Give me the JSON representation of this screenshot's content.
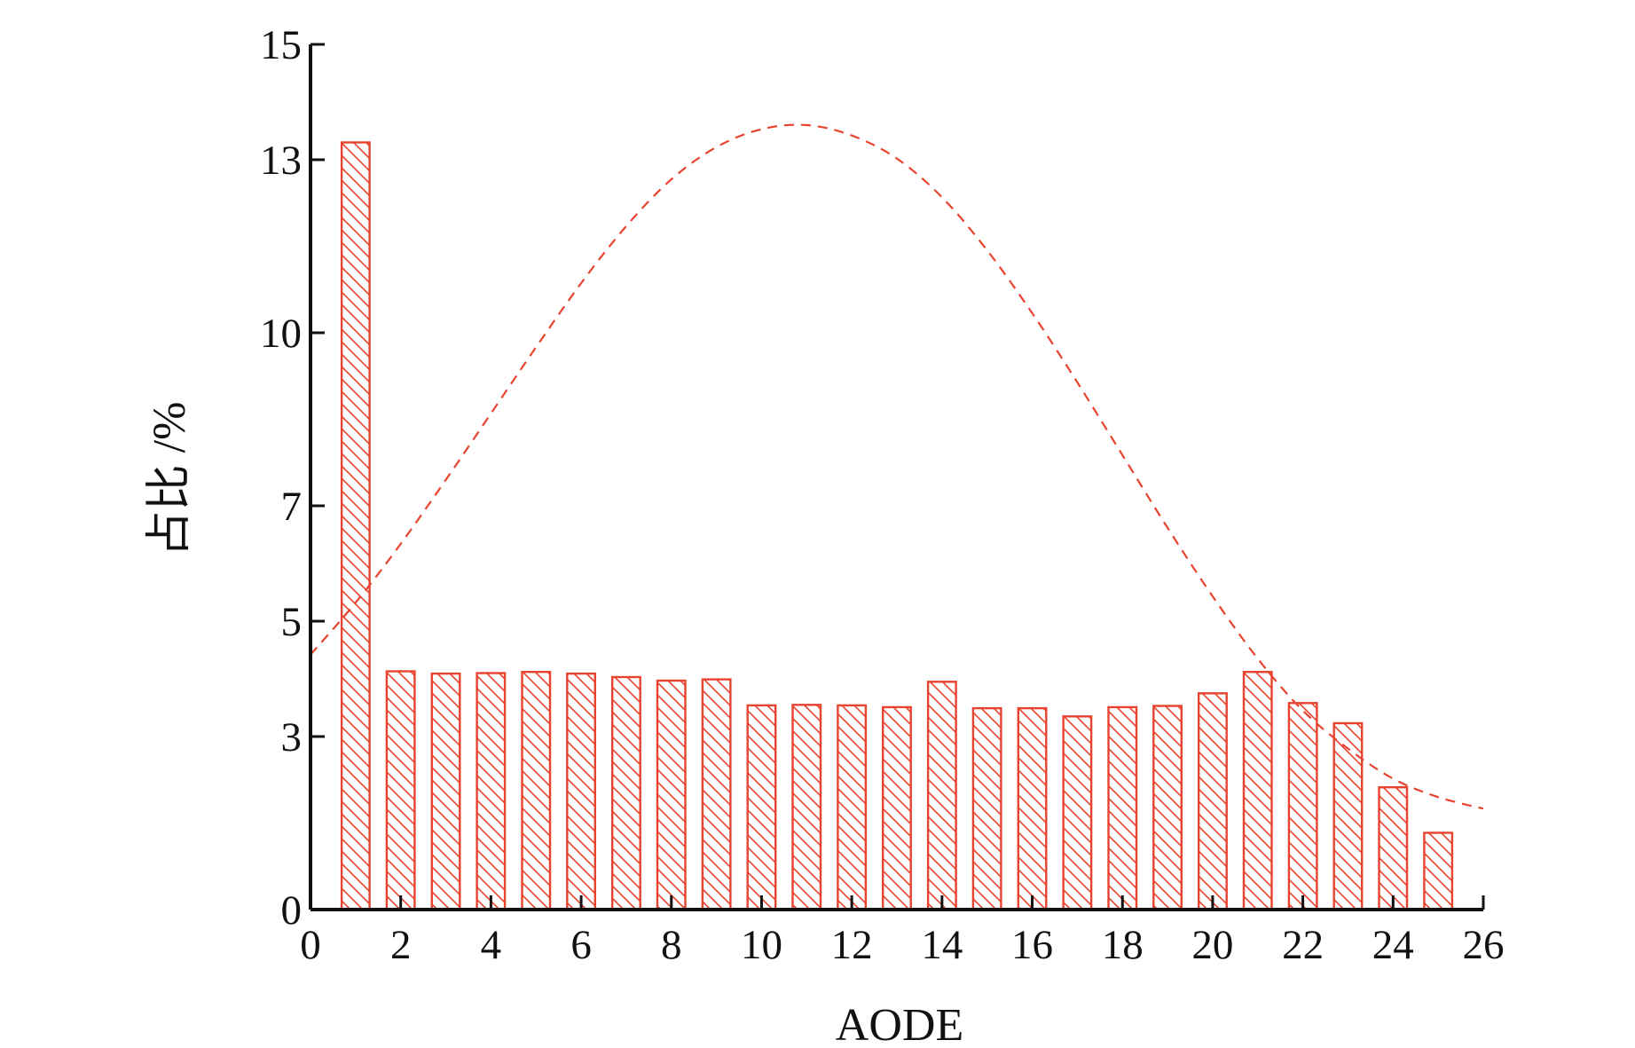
{
  "chart_data": {
    "type": "bar",
    "xlabel": "AODE",
    "ylabel": "占比 /%",
    "xlim": [
      0,
      26
    ],
    "ylim": [
      0,
      15
    ],
    "x_ticks": [
      0,
      2,
      4,
      6,
      8,
      10,
      12,
      14,
      16,
      18,
      20,
      22,
      24,
      26
    ],
    "y_ticks": [
      0,
      3,
      5,
      7,
      10,
      13,
      15
    ],
    "grid": false,
    "legend": "none",
    "bar_color": "#e8432f",
    "curve_color": "#e8432f",
    "bars": {
      "x": [
        1,
        2,
        3,
        4,
        5,
        6,
        7,
        8,
        9,
        10,
        11,
        12,
        13,
        14,
        15,
        16,
        17,
        18,
        19,
        20,
        21,
        22,
        23,
        24,
        25
      ],
      "values": [
        13.3,
        4.13,
        4.09,
        4.1,
        4.12,
        4.09,
        4.03,
        3.97,
        3.99,
        3.54,
        3.55,
        3.54,
        3.51,
        3.95,
        3.49,
        3.49,
        3.35,
        3.51,
        3.53,
        3.75,
        4.12,
        3.58,
        3.23,
        2.12,
        1.33
      ]
    },
    "fit_curve": {
      "style": "dashed",
      "x": [
        0,
        1,
        2,
        3,
        4,
        5,
        6,
        7,
        8,
        9,
        10,
        11,
        12,
        13,
        14,
        15,
        16,
        17,
        18,
        19,
        20,
        21,
        22,
        23,
        24,
        25,
        26
      ],
      "values": [
        4.42,
        5.32,
        6.34,
        7.45,
        8.6,
        9.75,
        10.86,
        11.85,
        12.66,
        13.22,
        13.53,
        13.6,
        13.42,
        13.02,
        12.35,
        11.43,
        10.34,
        9.14,
        7.88,
        6.62,
        5.43,
        4.35,
        3.45,
        2.79,
        2.27,
        1.95,
        1.75
      ]
    }
  }
}
